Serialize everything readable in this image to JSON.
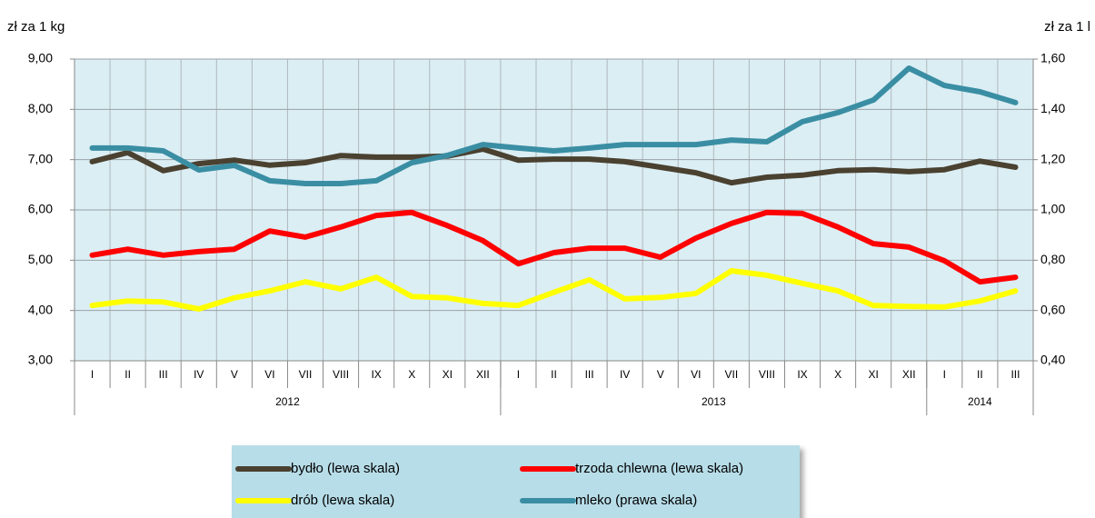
{
  "chart_data": {
    "type": "line",
    "ylabel": "zł za 1 kg",
    "y2label": "zł za 1 l",
    "categories": [
      "I",
      "II",
      "III",
      "IV",
      "V",
      "VI",
      "VII",
      "VIII",
      "IX",
      "X",
      "XI",
      "XII",
      "I",
      "II",
      "III",
      "IV",
      "V",
      "VI",
      "VII",
      "VIII",
      "IX",
      "X",
      "XI",
      "XII",
      "I",
      "II",
      "III"
    ],
    "x_groups": [
      {
        "label": "2012",
        "span": 12
      },
      {
        "label": "2013",
        "span": 12
      },
      {
        "label": "2014",
        "span": 3
      }
    ],
    "ylim": [
      3,
      9
    ],
    "yticks": [
      {
        "value": 3,
        "label": "3,00"
      },
      {
        "value": 4,
        "label": "4,00"
      },
      {
        "value": 5,
        "label": "5,00"
      },
      {
        "value": 6,
        "label": "6,00"
      },
      {
        "value": 7,
        "label": "7,00"
      },
      {
        "value": 8,
        "label": "8,00"
      },
      {
        "value": 9,
        "label": "9,00"
      }
    ],
    "y2lim": [
      0.4,
      1.6
    ],
    "y2ticks": [
      {
        "value": 0.4,
        "label": "0,40"
      },
      {
        "value": 0.6,
        "label": "0,60"
      },
      {
        "value": 0.8,
        "label": "0,80"
      },
      {
        "value": 1.0,
        "label": "1,00"
      },
      {
        "value": 1.2,
        "label": "1,20"
      },
      {
        "value": 1.4,
        "label": "1,40"
      },
      {
        "value": 1.6,
        "label": "1,60"
      }
    ],
    "grid": true,
    "legend": "bottom",
    "series": [
      {
        "name": "bydło (lewa skala)",
        "color": "#4a4130",
        "values": [
          6.96,
          7.14,
          6.78,
          6.92,
          6.99,
          6.89,
          6.94,
          7.08,
          7.05,
          7.05,
          7.07,
          7.21,
          6.99,
          7.01,
          7.01,
          6.96,
          6.85,
          6.74,
          6.54,
          6.65,
          6.69,
          6.78,
          6.8,
          6.76,
          6.8,
          6.97,
          6.85
        ]
      },
      {
        "name": "trzoda chlewna (lewa skala)",
        "color": "#ff0000",
        "values": [
          5.1,
          5.22,
          5.1,
          5.17,
          5.22,
          5.58,
          5.46,
          5.66,
          5.89,
          5.95,
          5.69,
          5.39,
          4.93,
          5.15,
          5.24,
          5.24,
          5.06,
          5.44,
          5.73,
          5.95,
          5.93,
          5.66,
          5.33,
          5.26,
          4.99,
          4.57,
          4.66
        ]
      },
      {
        "name": "drób (lewa skala)",
        "color": "#ffff00",
        "values": [
          4.1,
          4.19,
          4.17,
          4.03,
          4.25,
          4.39,
          4.57,
          4.43,
          4.66,
          4.28,
          4.25,
          4.14,
          4.1,
          4.36,
          4.61,
          4.23,
          4.26,
          4.34,
          4.79,
          4.7,
          4.54,
          4.39,
          4.1,
          4.08,
          4.07,
          4.19,
          4.39
        ]
      },
      {
        "name": "mleko (prawa skala)",
        "color": "#3a8ea3",
        "axis": "y2",
        "values": [
          1.246,
          1.246,
          1.235,
          1.159,
          1.177,
          1.116,
          1.105,
          1.105,
          1.116,
          1.188,
          1.217,
          1.26,
          1.246,
          1.235,
          1.246,
          1.26,
          1.26,
          1.26,
          1.278,
          1.271,
          1.351,
          1.387,
          1.437,
          1.564,
          1.495,
          1.47,
          1.427
        ]
      }
    ]
  }
}
